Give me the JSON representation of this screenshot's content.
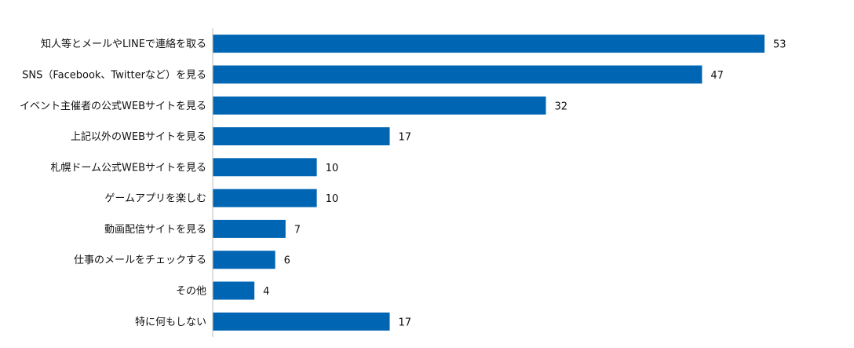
{
  "chart_data": {
    "type": "bar",
    "orientation": "horizontal",
    "categories": [
      "知人等とメールやLINEで連絡を取る",
      "SNS（Facebook、Twitterなど）を見る",
      "イベント主催者の公式WEBサイトを見る",
      "上記以外のWEBサイトを見る",
      "札幌ドーム公式WEBサイトを見る",
      "ゲームアプリを楽しむ",
      "動画配信サイトを見る",
      "仕事のメールをチェックする",
      "その他",
      "特に何もしない"
    ],
    "values": [
      53,
      47,
      32,
      17,
      10,
      10,
      7,
      6,
      4,
      17
    ],
    "title": "",
    "xlabel": "",
    "ylabel": "",
    "grid": false,
    "legend": "none",
    "bar_color": "#0066b3",
    "axis_color": "#bfbfbf"
  }
}
